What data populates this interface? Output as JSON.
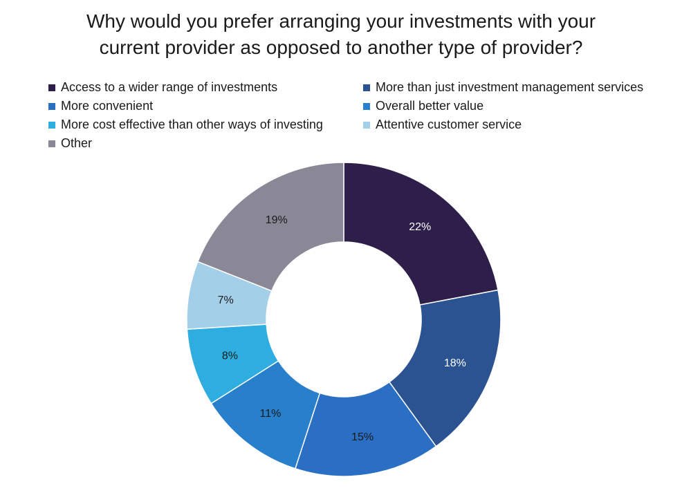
{
  "chart_data": {
    "type": "pie",
    "donut": true,
    "title_lines": [
      "Why would you prefer arranging your investments with your",
      "current provider as opposed to another type of provider?"
    ],
    "legend_placement": "top",
    "categories": [
      "Access to a wider range of investments",
      "More than just investment management services",
      "More convenient",
      "Overall better value",
      "More cost effective than other ways of investing",
      "Attentive customer service",
      "Other"
    ],
    "values": [
      22,
      18,
      15,
      11,
      8,
      7,
      19
    ],
    "value_labels": [
      "22%",
      "18%",
      "15%",
      "11%",
      "8%",
      "7%",
      "19%"
    ],
    "colors": [
      "#2e1f4a",
      "#2c5391",
      "#2a6fc4",
      "#2880cc",
      "#2eaee0",
      "#a3d0e8",
      "#8a8796"
    ],
    "label_colors": [
      "#ffffff",
      "#ffffff",
      "#1a1a1a",
      "#1a1a1a",
      "#1a1a1a",
      "#1a1a1a",
      "#1a1a1a"
    ]
  }
}
